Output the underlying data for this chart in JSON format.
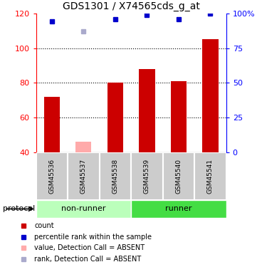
{
  "title": "GDS1301 / X74565cds_g_at",
  "samples": [
    "GSM45536",
    "GSM45537",
    "GSM45538",
    "GSM45539",
    "GSM45540",
    "GSM45541"
  ],
  "groups": [
    "non-runner",
    "non-runner",
    "non-runner",
    "runner",
    "runner",
    "runner"
  ],
  "bar_values": [
    72,
    null,
    80,
    88,
    81,
    105
  ],
  "bar_absent_values": [
    null,
    46,
    null,
    null,
    null,
    null
  ],
  "rank_values": [
    94,
    null,
    96,
    99,
    96,
    100
  ],
  "rank_absent_values": [
    null,
    87,
    null,
    null,
    null,
    null
  ],
  "bar_color": "#cc0000",
  "bar_absent_color": "#ffaaaa",
  "rank_color": "#0000cc",
  "rank_absent_color": "#aaaacc",
  "ylim_left": [
    40,
    120
  ],
  "ylim_right": [
    0,
    100
  ],
  "yticks_left": [
    40,
    60,
    80,
    100,
    120
  ],
  "yticks_right": [
    0,
    25,
    50,
    75,
    100
  ],
  "ytick_labels_right": [
    "0",
    "25",
    "50",
    "75",
    "100%"
  ],
  "grid_values": [
    60,
    80,
    100
  ],
  "non_runner_color": "#bbffbb",
  "runner_color": "#44dd44",
  "sample_box_color": "#cccccc",
  "bar_width": 0.5
}
